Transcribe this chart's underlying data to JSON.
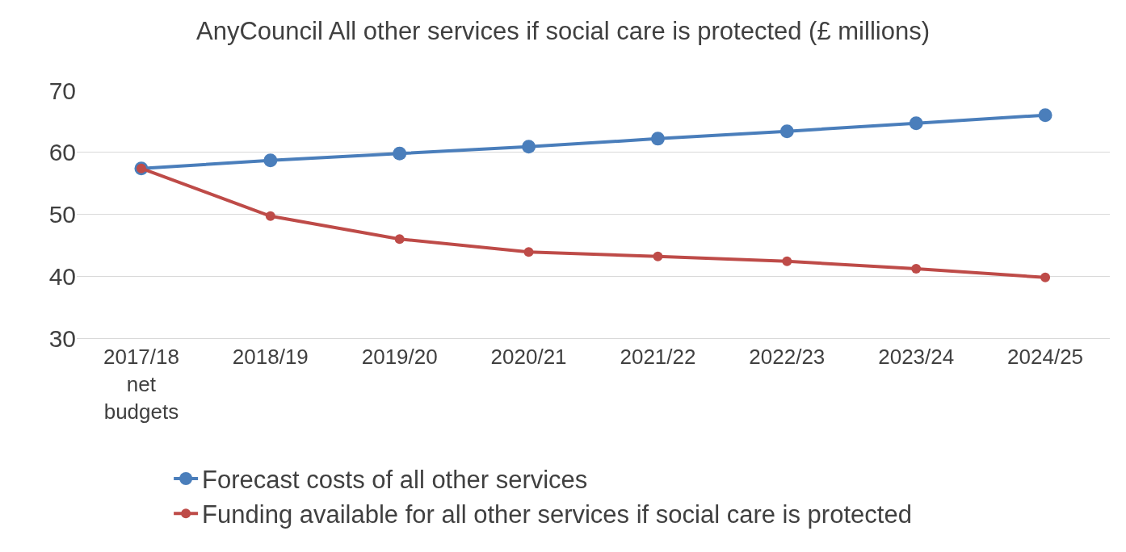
{
  "chart_data": {
    "type": "line",
    "title": "AnyCouncil All other services if social care is protected (£ millions)",
    "categories": [
      "2017/18 net budgets",
      "2018/19",
      "2019/20",
      "2020/21",
      "2021/22",
      "2022/23",
      "2023/24",
      "2024/25"
    ],
    "series": [
      {
        "name": "Forecast costs of all other services",
        "color": "#4a7ebb",
        "values": [
          57.4,
          58.7,
          59.8,
          60.9,
          62.2,
          63.4,
          64.7,
          66.0
        ]
      },
      {
        "name": "Funding available for all other services if social care is protected",
        "color": "#be4b48",
        "values": [
          57.4,
          49.7,
          46.0,
          43.9,
          43.2,
          42.4,
          41.2,
          39.8
        ]
      }
    ],
    "ylim": [
      30,
      70
    ],
    "yticks": [
      30,
      40,
      50,
      60,
      70
    ],
    "grid": "y",
    "legend": "bottom",
    "marker": "circle",
    "line_style": "solid"
  }
}
